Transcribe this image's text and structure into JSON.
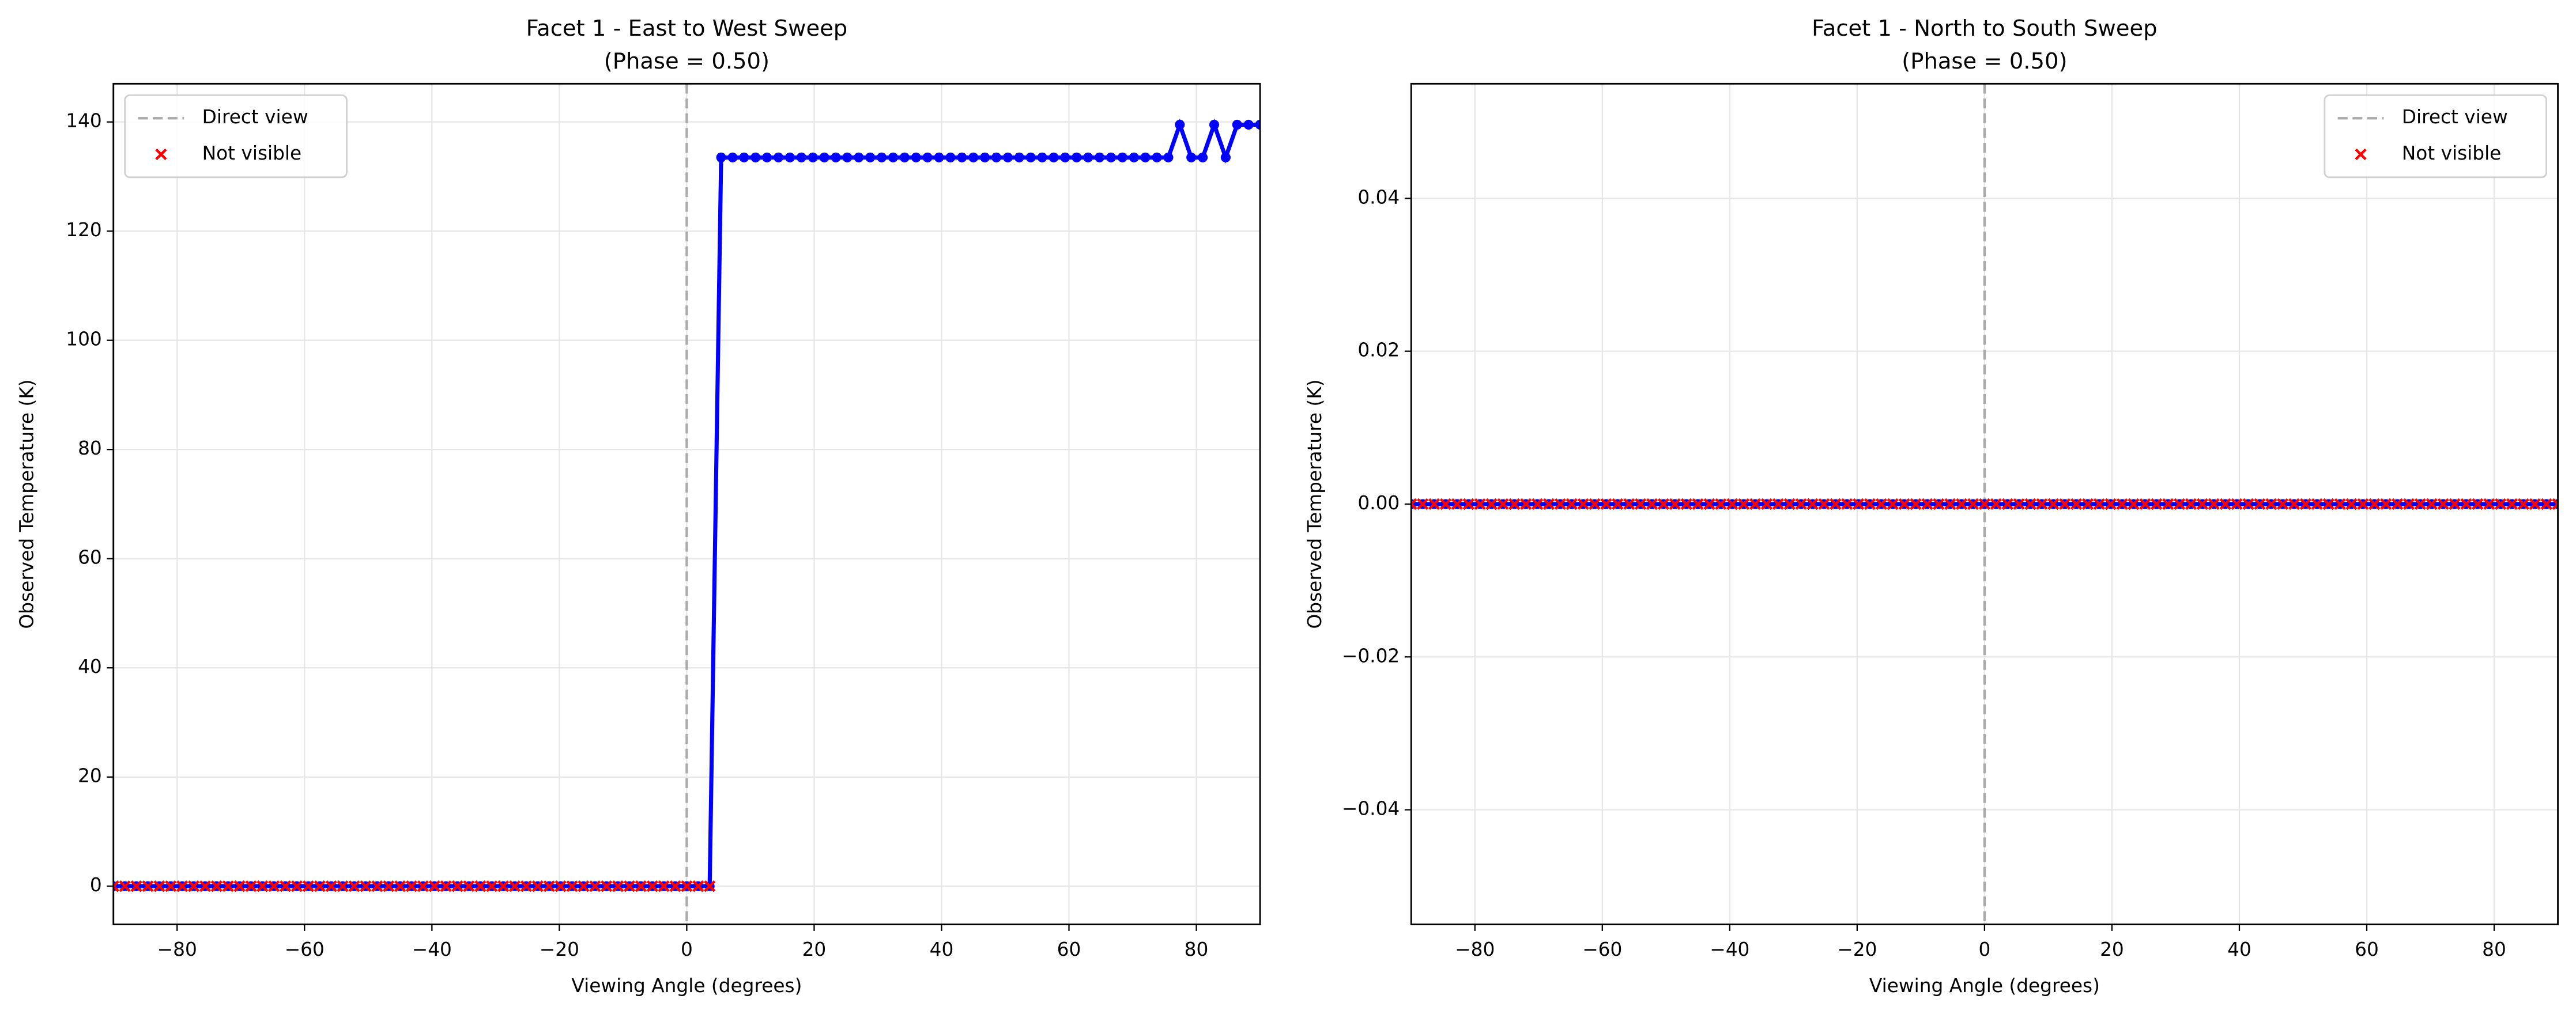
{
  "chart_data": [
    {
      "type": "line",
      "title": "Facet 1 - East to West Sweep",
      "subtitle": "(Phase = 0.50)",
      "x_label": "Viewing Angle (degrees)",
      "y_label": "Observed Temperature (K)",
      "x": [
        -90,
        -88.2,
        -86.4,
        -84.6,
        -82.8,
        -81,
        -79.2,
        -77.4,
        -75.6,
        -73.8,
        -72,
        -70.2,
        -68.4,
        -66.6,
        -64.8,
        -63,
        -61.2,
        -59.4,
        -57.6,
        -55.8,
        -54,
        -52.2,
        -50.4,
        -48.6,
        -46.8,
        -45,
        -43.2,
        -41.4,
        -39.6,
        -37.8,
        -36,
        -34.2,
        -32.4,
        -30.6,
        -28.8,
        -27,
        -25.2,
        -23.4,
        -21.6,
        -19.8,
        -18,
        -16.2,
        -14.4,
        -12.6,
        -10.8,
        -9,
        -7.2,
        -5.4,
        -3.6,
        -1.8,
        0,
        1.8,
        3.6,
        5.4,
        7.2,
        9,
        10.8,
        12.6,
        14.4,
        16.2,
        18,
        19.8,
        21.6,
        23.4,
        25.2,
        27,
        28.8,
        30.6,
        32.4,
        34.2,
        36,
        37.8,
        39.6,
        41.4,
        43.2,
        45,
        46.8,
        48.6,
        50.4,
        52.2,
        54,
        55.8,
        57.6,
        59.4,
        61.2,
        63,
        64.8,
        66.6,
        68.4,
        70.2,
        72,
        73.8,
        75.6,
        77.4,
        79.2,
        81,
        82.8,
        84.6,
        86.4,
        88.2,
        90
      ],
      "values": [
        0,
        0,
        0,
        0,
        0,
        0,
        0,
        0,
        0,
        0,
        0,
        0,
        0,
        0,
        0,
        0,
        0,
        0,
        0,
        0,
        0,
        0,
        0,
        0,
        0,
        0,
        0,
        0,
        0,
        0,
        0,
        0,
        0,
        0,
        0,
        0,
        0,
        0,
        0,
        0,
        0,
        0,
        0,
        0,
        0,
        0,
        0,
        0,
        0,
        0,
        0,
        0,
        0,
        133.5,
        133.5,
        133.5,
        133.5,
        133.5,
        133.5,
        133.5,
        133.5,
        133.5,
        133.5,
        133.5,
        133.5,
        133.5,
        133.5,
        133.5,
        133.5,
        133.5,
        133.5,
        133.5,
        133.5,
        133.5,
        133.5,
        133.5,
        133.5,
        133.5,
        133.5,
        133.5,
        133.5,
        133.5,
        133.5,
        133.5,
        133.5,
        133.5,
        133.5,
        133.5,
        133.5,
        133.5,
        133.5,
        133.5,
        133.5,
        139.5,
        133.5,
        133.5,
        139.5,
        133.5,
        139.5,
        139.5,
        139.5
      ],
      "color": "#0000ff",
      "not_visible": {
        "name": "Not visible",
        "color": "#ff0000",
        "values": [
          0,
          0,
          0,
          0,
          0,
          0,
          0,
          0,
          0,
          0,
          0,
          0,
          0,
          0,
          0,
          0,
          0,
          0,
          0,
          0,
          0,
          0,
          0,
          0,
          0,
          0,
          0,
          0,
          0,
          0,
          0,
          0,
          0,
          0,
          0,
          0,
          0,
          0,
          0,
          0,
          0,
          0,
          0,
          0,
          0,
          0,
          0,
          0,
          0,
          0,
          0,
          0,
          0,
          null,
          null,
          null,
          null,
          null,
          null,
          null,
          null,
          null,
          null,
          null,
          null,
          null,
          null,
          null,
          null,
          null,
          null,
          null,
          null,
          null,
          null,
          null,
          null,
          null,
          null,
          null,
          null,
          null,
          null,
          null,
          null,
          null,
          null,
          null,
          null,
          null,
          null,
          null,
          null,
          null,
          null,
          null,
          null,
          null,
          null,
          null,
          null,
          null,
          null
        ]
      },
      "reference_line": {
        "name": "Direct view",
        "x": 0,
        "color": "#aaaaaa"
      },
      "xlim": [
        -90,
        90
      ],
      "xticks": [
        {
          "value": -80,
          "label": "−80"
        },
        {
          "value": -60,
          "label": "−60"
        },
        {
          "value": -40,
          "label": "−40"
        },
        {
          "value": -20,
          "label": "−20"
        },
        0,
        20,
        40,
        60,
        80
      ],
      "ylim": [
        -7,
        147
      ],
      "yticks": [
        0,
        20,
        40,
        60,
        80,
        100,
        120,
        140
      ],
      "grid": true,
      "legend": "upper-left"
    },
    {
      "type": "line",
      "title": "Facet 1 - North to South Sweep",
      "subtitle": "(Phase = 0.50)",
      "x_label": "Viewing Angle (degrees)",
      "y_label": "Observed Temperature (K)",
      "x": [
        -90,
        -88.2,
        -86.4,
        -84.6,
        -82.8,
        -81,
        -79.2,
        -77.4,
        -75.6,
        -73.8,
        -72,
        -70.2,
        -68.4,
        -66.6,
        -64.8,
        -63,
        -61.2,
        -59.4,
        -57.6,
        -55.8,
        -54,
        -52.2,
        -50.4,
        -48.6,
        -46.8,
        -45,
        -43.2,
        -41.4,
        -39.6,
        -37.8,
        -36,
        -34.2,
        -32.4,
        -30.6,
        -28.8,
        -27,
        -25.2,
        -23.4,
        -21.6,
        -19.8,
        -18,
        -16.2,
        -14.4,
        -12.6,
        -10.8,
        -9,
        -7.2,
        -5.4,
        -3.6,
        -1.8,
        0,
        1.8,
        3.6,
        5.4,
        7.2,
        9,
        10.8,
        12.6,
        14.4,
        16.2,
        18,
        19.8,
        21.6,
        23.4,
        25.2,
        27,
        28.8,
        30.6,
        32.4,
        34.2,
        36,
        37.8,
        39.6,
        41.4,
        43.2,
        45,
        46.8,
        48.6,
        50.4,
        52.2,
        54,
        55.8,
        57.6,
        59.4,
        61.2,
        63,
        64.8,
        66.6,
        68.4,
        70.2,
        72,
        73.8,
        75.6,
        77.4,
        79.2,
        81,
        82.8,
        84.6,
        86.4,
        88.2,
        90
      ],
      "values": [
        0,
        0,
        0,
        0,
        0,
        0,
        0,
        0,
        0,
        0,
        0,
        0,
        0,
        0,
        0,
        0,
        0,
        0,
        0,
        0,
        0,
        0,
        0,
        0,
        0,
        0,
        0,
        0,
        0,
        0,
        0,
        0,
        0,
        0,
        0,
        0,
        0,
        0,
        0,
        0,
        0,
        0,
        0,
        0,
        0,
        0,
        0,
        0,
        0,
        0,
        0,
        0,
        0,
        0,
        0,
        0,
        0,
        0,
        0,
        0,
        0,
        0,
        0,
        0,
        0,
        0,
        0,
        0,
        0,
        0,
        0,
        0,
        0,
        0,
        0,
        0,
        0,
        0,
        0,
        0,
        0,
        0,
        0,
        0,
        0,
        0,
        0,
        0,
        0,
        0,
        0,
        0,
        0,
        0,
        0,
        0,
        0,
        0,
        0,
        0,
        0
      ],
      "color": "#0000ff",
      "not_visible": {
        "name": "Not visible",
        "color": "#ff0000",
        "values": [
          0,
          0,
          0,
          0,
          0,
          0,
          0,
          0,
          0,
          0,
          0,
          0,
          0,
          0,
          0,
          0,
          0,
          0,
          0,
          0,
          0,
          0,
          0,
          0,
          0,
          0,
          0,
          0,
          0,
          0,
          0,
          0,
          0,
          0,
          0,
          0,
          0,
          0,
          0,
          0,
          0,
          0,
          0,
          0,
          0,
          0,
          0,
          0,
          0,
          0,
          0,
          0,
          0,
          0,
          0,
          0,
          0,
          0,
          0,
          0,
          0,
          0,
          0,
          0,
          0,
          0,
          0,
          0,
          0,
          0,
          0,
          0,
          0,
          0,
          0,
          0,
          0,
          0,
          0,
          0,
          0,
          0,
          0,
          0,
          0,
          0,
          0,
          0,
          0,
          0,
          0,
          0,
          0,
          0,
          0,
          0,
          0,
          0,
          0,
          0,
          0
        ]
      },
      "reference_line": {
        "name": "Direct view",
        "x": 0,
        "color": "#aaaaaa"
      },
      "xlim": [
        -90,
        90
      ],
      "xticks": [
        {
          "value": -80,
          "label": "−80"
        },
        {
          "value": -60,
          "label": "−60"
        },
        {
          "value": -40,
          "label": "−40"
        },
        {
          "value": -20,
          "label": "−20"
        },
        0,
        20,
        40,
        60,
        80
      ],
      "ylim": [
        -0.055,
        0.055
      ],
      "yticks": [
        {
          "value": -0.04,
          "label": "−0.04"
        },
        {
          "value": -0.02,
          "label": "−0.02"
        },
        {
          "value": 0,
          "label": "0.00"
        },
        {
          "value": 0.02,
          "label": "0.02"
        },
        {
          "value": 0.04,
          "label": "0.04"
        }
      ],
      "grid": true,
      "legend": "upper-right"
    }
  ]
}
